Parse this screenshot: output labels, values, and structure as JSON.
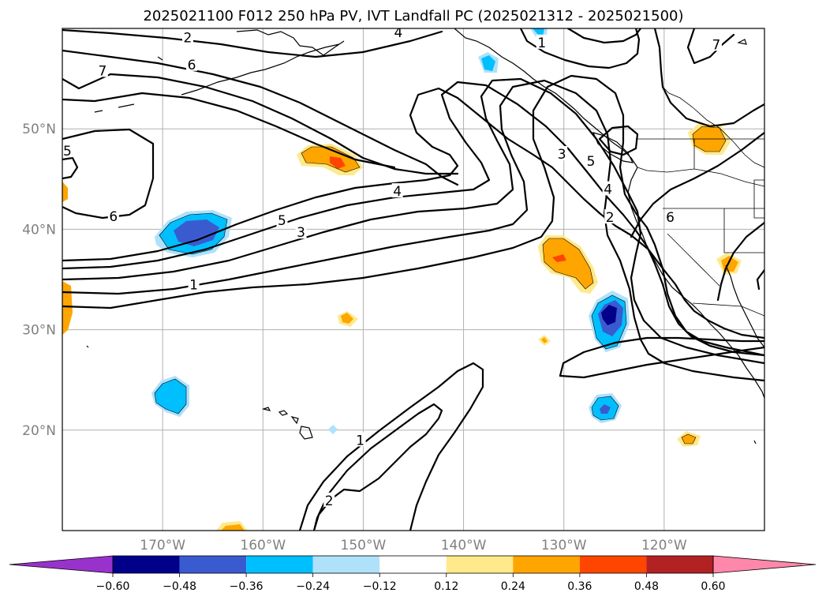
{
  "title": "2025021100 F012 250 hPa PV, IVT Landfall PC (2025021312 - 2025021500)",
  "map": {
    "lon_range": [
      -180,
      -110
    ],
    "lat_range": [
      10,
      60
    ],
    "lat_ticks": [
      {
        "value": 50,
        "label": "50°N"
      },
      {
        "value": 40,
        "label": "40°N"
      },
      {
        "value": 30,
        "label": "30°N"
      },
      {
        "value": 20,
        "label": "20°N"
      }
    ],
    "lon_ticks": [
      {
        "value": -170,
        "label": "170°W"
      },
      {
        "value": -160,
        "label": "160°W"
      },
      {
        "value": -150,
        "label": "150°W"
      },
      {
        "value": -140,
        "label": "140°W"
      },
      {
        "value": -130,
        "label": "130°W"
      },
      {
        "value": -120,
        "label": "120°W"
      }
    ],
    "gridlines": true
  },
  "pv_contour_labels": [
    {
      "text": "2",
      "lon": -167.5,
      "lat": 59.1
    },
    {
      "text": "4",
      "lon": -146.5,
      "lat": 59.6
    },
    {
      "text": "1",
      "lon": -132.2,
      "lat": 58.6
    },
    {
      "text": "7",
      "lon": -114.8,
      "lat": 58.4
    },
    {
      "text": "7",
      "lon": -176,
      "lat": 55.8
    },
    {
      "text": "6",
      "lon": -167.1,
      "lat": 56.4
    },
    {
      "text": "5",
      "lon": -179.5,
      "lat": 47.8
    },
    {
      "text": "6",
      "lon": -174.9,
      "lat": 41.3
    },
    {
      "text": "5",
      "lon": -158.1,
      "lat": 40.9
    },
    {
      "text": "3",
      "lon": -156.2,
      "lat": 39.7
    },
    {
      "text": "4",
      "lon": -146.6,
      "lat": 43.8
    },
    {
      "text": "1",
      "lon": -166.9,
      "lat": 34.5
    },
    {
      "text": "3",
      "lon": -130.2,
      "lat": 47.5
    },
    {
      "text": "5",
      "lon": -127.3,
      "lat": 46.8
    },
    {
      "text": "4",
      "lon": -125.6,
      "lat": 44.0
    },
    {
      "text": "2",
      "lon": -125.4,
      "lat": 41.2
    },
    {
      "text": "6",
      "lon": -119.4,
      "lat": 41.2
    },
    {
      "text": "1",
      "lon": -150.3,
      "lat": 19.0
    },
    {
      "text": "2",
      "lon": -153.4,
      "lat": 13.0
    }
  ],
  "ivt_pc_fill_colors": {
    "neg_060": "#9932cc",
    "neg_048": "#00008b",
    "neg_036": "#3a5bcf",
    "neg_024": "#00bfff",
    "neg_012": "#afe1fb",
    "pos_012": "#ffe98a",
    "pos_024": "#ffa500",
    "pos_036": "#ff4500",
    "pos_048": "#b22222",
    "pos_060": "#ff88aa"
  },
  "colorbar": {
    "extend": "both",
    "colors": [
      "#9932cc",
      "#00008b",
      "#3a5bcf",
      "#00bfff",
      "#afe1fb",
      "#ffffff",
      "#ffe98a",
      "#ffa500",
      "#ff4500",
      "#b22222",
      "#ff88aa"
    ],
    "tick_labels": [
      "−0.60",
      "−0.48",
      "−0.36",
      "−0.24",
      "−0.12",
      "0.12",
      "0.24",
      "0.36",
      "0.48",
      "0.60"
    ]
  }
}
